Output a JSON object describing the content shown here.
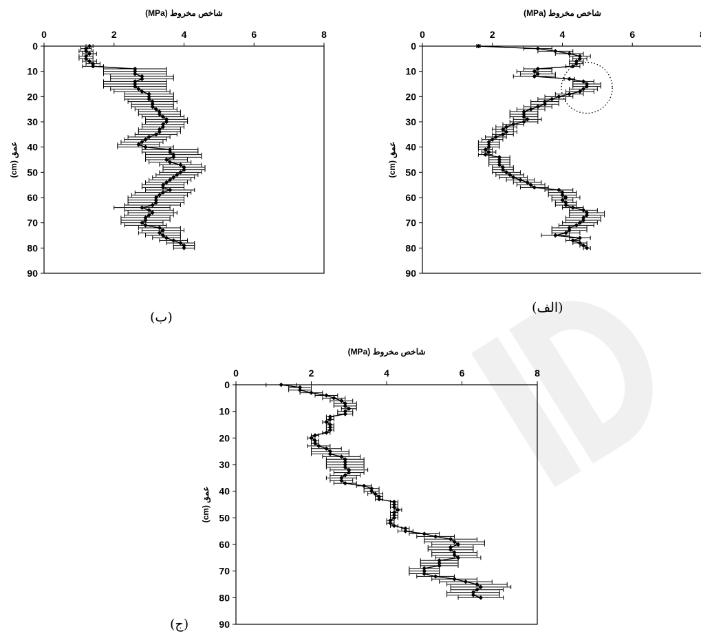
{
  "figure": {
    "captions": {
      "alef": "(الف)",
      "be": "(ب)",
      "jim": "(ج)"
    }
  },
  "chart_data": [
    {
      "type": "line",
      "panel": "الف",
      "x_axis_label": "شاخص مخروط (MPa)",
      "y_axis_label": "عمق (cm)",
      "xlim": [
        0,
        8
      ],
      "ylim": [
        0,
        90
      ],
      "x_ticks": [
        0,
        2,
        4,
        6,
        8
      ],
      "y_ticks": [
        0,
        10,
        20,
        30,
        40,
        50,
        60,
        70,
        80,
        90
      ],
      "x_axis_position": "top",
      "y_axis_inverted": true,
      "error_bars": "horizontal",
      "annotation": "dotted circle around depth 13–23 cm",
      "series": [
        {
          "depth": [
            0,
            1,
            2,
            3,
            4,
            5,
            6,
            7,
            8,
            9,
            10,
            11,
            12,
            13,
            14,
            15,
            16,
            17,
            18,
            19,
            20,
            21,
            22,
            23,
            24,
            25,
            26,
            27,
            28,
            29,
            30,
            31,
            32,
            33,
            34,
            35,
            36,
            37,
            38,
            39,
            40,
            41,
            42,
            43,
            44,
            45,
            46,
            47,
            48,
            49,
            50,
            51,
            52,
            53,
            54,
            55,
            56,
            57,
            58,
            59,
            60,
            61,
            62,
            63,
            64,
            65,
            66,
            67,
            68,
            69,
            70,
            71,
            72,
            73,
            74,
            75,
            76,
            77,
            78,
            79,
            80
          ],
          "value": [
            1.6,
            3.3,
            3.8,
            4.2,
            4.5,
            4.5,
            4.4,
            4.4,
            4.3,
            3.3,
            3.2,
            3.3,
            3.2,
            4.2,
            4.6,
            4.7,
            4.7,
            4.6,
            4.5,
            4.2,
            3.9,
            3.7,
            3.5,
            3.5,
            3.3,
            3.1,
            2.9,
            2.9,
            2.9,
            3.0,
            2.9,
            2.6,
            2.4,
            2.3,
            2.4,
            2.3,
            2.1,
            2.0,
            1.9,
            1.9,
            1.9,
            1.8,
            1.9,
            1.8,
            2.2,
            2.2,
            2.2,
            2.2,
            2.3,
            2.3,
            2.4,
            2.5,
            2.6,
            2.8,
            3.0,
            3.1,
            3.2,
            3.9,
            4.0,
            4.0,
            4.1,
            4.0,
            4.1,
            4.1,
            4.3,
            4.6,
            4.7,
            4.7,
            4.6,
            4.6,
            4.5,
            4.4,
            4.2,
            4.2,
            4.1,
            3.8,
            4.5,
            4.3,
            4.5,
            4.6,
            4.7
          ],
          "error": [
            0.05,
            0.4,
            0.5,
            0.4,
            0.3,
            0.2,
            0.2,
            0.2,
            0.2,
            0.4,
            0.5,
            0.5,
            0.6,
            0.15,
            0.3,
            0.4,
            0.4,
            0.4,
            0.4,
            0.4,
            0.4,
            0.4,
            0.4,
            0.4,
            0.4,
            0.4,
            0.4,
            0.4,
            0.4,
            0.4,
            0.4,
            0.3,
            0.3,
            0.3,
            0.3,
            0.3,
            0.3,
            0.3,
            0.3,
            0.3,
            0.3,
            0.2,
            0.2,
            0.2,
            0.3,
            0.3,
            0.3,
            0.3,
            0.3,
            0.3,
            0.4,
            0.4,
            0.4,
            0.4,
            0.4,
            0.4,
            0.4,
            0.4,
            0.4,
            0.4,
            0.4,
            0.3,
            0.3,
            0.3,
            0.3,
            0.4,
            0.5,
            0.5,
            0.5,
            0.5,
            0.5,
            0.5,
            0.5,
            0.5,
            0.4,
            0.4,
            0.3,
            0.2,
            0.2,
            0.1,
            0.1
          ]
        }
      ]
    },
    {
      "type": "line",
      "panel": "ب",
      "x_axis_label": "شاخص مخروط (MPa)",
      "y_axis_label": "عمق (cm)",
      "xlim": [
        0,
        8
      ],
      "ylim": [
        0,
        90
      ],
      "x_ticks": [
        0,
        2,
        4,
        6,
        8
      ],
      "y_ticks": [
        0,
        10,
        20,
        30,
        40,
        50,
        60,
        70,
        80,
        90
      ],
      "x_axis_position": "top",
      "y_axis_inverted": true,
      "error_bars": "horizontal",
      "series": [
        {
          "depth": [
            0,
            1,
            2,
            3,
            4,
            5,
            6,
            7,
            8,
            9,
            10,
            11,
            12,
            13,
            14,
            15,
            16,
            17,
            18,
            19,
            20,
            21,
            22,
            23,
            24,
            25,
            26,
            27,
            28,
            29,
            30,
            31,
            32,
            33,
            34,
            35,
            36,
            37,
            38,
            39,
            40,
            41,
            42,
            43,
            44,
            45,
            46,
            47,
            48,
            49,
            50,
            51,
            52,
            53,
            54,
            55,
            56,
            57,
            58,
            59,
            60,
            61,
            62,
            63,
            64,
            65,
            66,
            67,
            68,
            69,
            70,
            71,
            72,
            73,
            74,
            75,
            76,
            77,
            78,
            79,
            80
          ],
          "value": [
            1.3,
            1.2,
            1.2,
            1.3,
            1.2,
            1.2,
            1.3,
            1.4,
            1.4,
            2.6,
            2.6,
            2.6,
            2.8,
            2.8,
            2.6,
            2.6,
            2.6,
            2.7,
            2.8,
            3.0,
            3.0,
            3.0,
            3.1,
            3.1,
            3.1,
            3.2,
            3.3,
            3.3,
            3.4,
            3.5,
            3.5,
            3.4,
            3.4,
            3.3,
            3.3,
            3.2,
            3.0,
            2.9,
            2.8,
            2.7,
            2.9,
            3.6,
            3.6,
            3.7,
            3.7,
            3.5,
            3.6,
            3.9,
            4.0,
            4.0,
            3.9,
            3.8,
            3.7,
            3.6,
            3.5,
            3.4,
            3.4,
            3.6,
            3.4,
            3.3,
            3.2,
            3.2,
            3.2,
            3.1,
            2.8,
            3.0,
            3.1,
            3.0,
            2.9,
            2.9,
            2.8,
            2.9,
            3.3,
            3.4,
            3.3,
            3.4,
            3.5,
            3.7,
            3.9,
            4.0,
            4.0
          ],
          "error": [
            0.1,
            0.15,
            0.2,
            0.2,
            0.2,
            0.2,
            0.2,
            0.2,
            0.3,
            0.9,
            0.9,
            0.9,
            0.9,
            0.9,
            0.9,
            0.9,
            0.9,
            0.8,
            0.8,
            0.7,
            0.7,
            0.7,
            0.7,
            0.6,
            0.6,
            0.6,
            0.6,
            0.6,
            0.6,
            0.6,
            0.6,
            0.6,
            0.6,
            0.6,
            0.6,
            0.6,
            0.6,
            0.6,
            0.6,
            0.6,
            0.8,
            0.8,
            0.8,
            0.8,
            0.8,
            0.6,
            0.6,
            0.6,
            0.6,
            0.6,
            0.6,
            0.6,
            0.6,
            0.6,
            0.6,
            0.6,
            0.6,
            0.7,
            0.8,
            0.8,
            0.8,
            0.8,
            0.8,
            0.8,
            0.8,
            0.7,
            0.7,
            0.7,
            0.7,
            0.7,
            0.6,
            0.6,
            0.6,
            0.6,
            0.6,
            0.5,
            0.4,
            0.4,
            0.4,
            0.3,
            0.3
          ]
        }
      ]
    },
    {
      "type": "line",
      "panel": "ج",
      "x_axis_label": "شاخص مخروط (MPa)",
      "y_axis_label": "عمق (cm)",
      "xlim": [
        0,
        8
      ],
      "ylim": [
        0,
        90
      ],
      "x_ticks": [
        0,
        2,
        4,
        6,
        8
      ],
      "y_ticks": [
        0,
        10,
        20,
        30,
        40,
        50,
        60,
        70,
        80,
        90
      ],
      "x_axis_position": "top",
      "y_axis_inverted": true,
      "error_bars": "horizontal",
      "series": [
        {
          "depth": [
            0,
            1,
            2,
            3,
            4,
            5,
            6,
            7,
            8,
            9,
            10,
            11,
            12,
            13,
            14,
            15,
            16,
            17,
            18,
            19,
            20,
            21,
            22,
            23,
            24,
            25,
            26,
            27,
            28,
            29,
            30,
            31,
            32,
            33,
            34,
            35,
            36,
            37,
            38,
            39,
            40,
            41,
            42,
            43,
            44,
            45,
            46,
            47,
            48,
            49,
            50,
            51,
            52,
            53,
            54,
            55,
            56,
            57,
            58,
            59,
            60,
            61,
            62,
            63,
            64,
            65,
            66,
            67,
            68,
            69,
            70,
            71,
            72,
            73,
            74,
            75,
            76,
            77,
            78,
            79,
            80
          ],
          "value": [
            1.2,
            1.7,
            1.7,
            2.0,
            2.4,
            2.6,
            2.8,
            2.9,
            2.9,
            3.0,
            2.9,
            2.9,
            2.5,
            2.5,
            2.4,
            2.5,
            2.5,
            2.5,
            2.4,
            2.1,
            2.0,
            2.1,
            2.1,
            2.2,
            2.4,
            2.5,
            2.5,
            2.8,
            2.9,
            2.9,
            2.9,
            2.9,
            3.0,
            3.0,
            2.9,
            2.8,
            2.8,
            2.9,
            3.4,
            3.6,
            3.6,
            3.7,
            3.8,
            3.8,
            4.2,
            4.2,
            4.2,
            4.3,
            4.2,
            4.2,
            4.2,
            4.1,
            4.1,
            4.2,
            4.5,
            4.5,
            5.0,
            5.3,
            5.7,
            5.8,
            5.9,
            5.7,
            5.7,
            5.8,
            5.8,
            5.9,
            5.4,
            5.4,
            5.4,
            5.0,
            5.0,
            5.0,
            5.3,
            5.8,
            6.1,
            6.4,
            6.5,
            6.4,
            6.3,
            6.3,
            6.5
          ],
          "error": [
            0.4,
            0.3,
            0.3,
            0.3,
            0.3,
            0.3,
            0.3,
            0.3,
            0.3,
            0.2,
            0.2,
            0.2,
            0.1,
            0.1,
            0.1,
            0.1,
            0.1,
            0.1,
            0.1,
            0.1,
            0.1,
            0.1,
            0.1,
            0.3,
            0.4,
            0.5,
            0.5,
            0.5,
            0.5,
            0.5,
            0.5,
            0.5,
            0.5,
            0.4,
            0.4,
            0.4,
            0.3,
            0.3,
            0.2,
            0.2,
            0.2,
            0.2,
            0.1,
            0.1,
            0.1,
            0.1,
            0.1,
            0.1,
            0.1,
            0.1,
            0.1,
            0.1,
            0.1,
            0.1,
            0.1,
            0.2,
            0.4,
            0.5,
            0.7,
            0.8,
            0.7,
            0.6,
            0.6,
            0.6,
            0.6,
            0.6,
            0.5,
            0.5,
            0.5,
            0.4,
            0.4,
            0.4,
            0.5,
            0.6,
            0.7,
            0.8,
            0.8,
            0.7,
            0.7,
            0.7,
            0.6
          ]
        }
      ]
    }
  ]
}
